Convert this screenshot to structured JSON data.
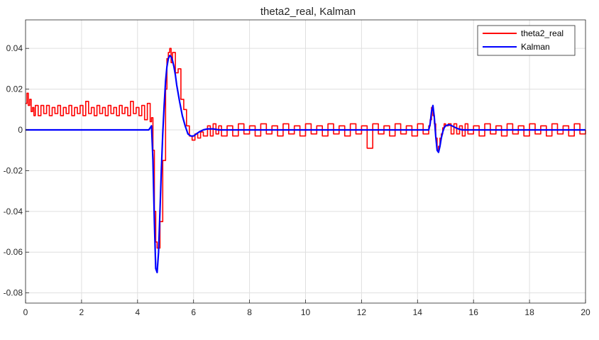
{
  "chart_data": {
    "type": "line",
    "title": "theta2_real, Kalman",
    "xlabel": "",
    "ylabel": "",
    "xlim": [
      0,
      20
    ],
    "ylim": [
      -0.085,
      0.054
    ],
    "xticks": [
      0,
      2,
      4,
      6,
      8,
      10,
      12,
      14,
      16,
      18,
      20
    ],
    "xtick_labels": [
      "0",
      "2",
      "4",
      "6",
      "8",
      "10",
      "12",
      "14",
      "16",
      "18",
      "20"
    ],
    "yticks": [
      -0.08,
      -0.06,
      -0.04,
      -0.02,
      0,
      0.02,
      0.04
    ],
    "ytick_labels": [
      "-0.08",
      "-0.06",
      "-0.04",
      "-0.02",
      "0",
      "0.02",
      "0.04"
    ],
    "grid": true,
    "legend_position": "top-right",
    "colors": {
      "theta2_real": "#ff0000",
      "Kalman": "#0000ff"
    },
    "series": [
      {
        "name": "theta2_real",
        "color": "#ff0000",
        "x": [
          0,
          0.05,
          0.1,
          0.15,
          0.2,
          0.25,
          0.3,
          0.35,
          0.45,
          0.55,
          0.65,
          0.75,
          0.85,
          0.95,
          1.05,
          1.15,
          1.25,
          1.35,
          1.45,
          1.55,
          1.65,
          1.75,
          1.85,
          1.95,
          2.05,
          2.15,
          2.25,
          2.35,
          2.45,
          2.55,
          2.65,
          2.75,
          2.85,
          2.95,
          3.05,
          3.15,
          3.25,
          3.35,
          3.45,
          3.55,
          3.65,
          3.75,
          3.85,
          3.95,
          4.05,
          4.15,
          4.25,
          4.35,
          4.45,
          4.5,
          4.55,
          4.6,
          4.65,
          4.7,
          4.8,
          4.9,
          5.0,
          5.05,
          5.1,
          5.15,
          5.2,
          5.25,
          5.35,
          5.45,
          5.55,
          5.65,
          5.75,
          5.85,
          5.95,
          6.05,
          6.15,
          6.25,
          6.35,
          6.5,
          6.6,
          6.7,
          6.8,
          6.9,
          7.0,
          7.2,
          7.4,
          7.6,
          7.8,
          8.0,
          8.2,
          8.4,
          8.6,
          8.8,
          9.0,
          9.2,
          9.4,
          9.6,
          9.8,
          10.0,
          10.2,
          10.4,
          10.6,
          10.8,
          11.0,
          11.2,
          11.4,
          11.6,
          11.8,
          12.0,
          12.2,
          12.4,
          12.6,
          12.8,
          13.0,
          13.2,
          13.4,
          13.6,
          13.8,
          14.0,
          14.2,
          14.4,
          14.45,
          14.5,
          14.55,
          14.6,
          14.65,
          14.7,
          14.75,
          14.8,
          14.85,
          14.9,
          14.95,
          15.0,
          15.1,
          15.2,
          15.3,
          15.4,
          15.5,
          15.6,
          15.7,
          15.8,
          16.0,
          16.2,
          16.4,
          16.6,
          16.8,
          17.0,
          17.2,
          17.4,
          17.6,
          17.8,
          18.0,
          18.2,
          18.4,
          18.6,
          18.8,
          19.0,
          19.2,
          19.4,
          19.6,
          19.8,
          20.0
        ],
        "y": [
          0.013,
          0.018,
          0.012,
          0.015,
          0.009,
          0.011,
          0.007,
          0.012,
          0.007,
          0.012,
          0.008,
          0.012,
          0.007,
          0.011,
          0.008,
          0.012,
          0.007,
          0.011,
          0.008,
          0.012,
          0.007,
          0.011,
          0.008,
          0.012,
          0.007,
          0.014,
          0.008,
          0.011,
          0.007,
          0.012,
          0.008,
          0.011,
          0.007,
          0.012,
          0.008,
          0.011,
          0.007,
          0.012,
          0.008,
          0.011,
          0.007,
          0.014,
          0.008,
          0.011,
          0.007,
          0.012,
          0.005,
          0.013,
          0.004,
          0.006,
          -0.01,
          -0.04,
          -0.055,
          -0.058,
          -0.045,
          -0.015,
          0.02,
          0.035,
          0.038,
          0.04,
          0.033,
          0.038,
          0.028,
          0.03,
          0.015,
          0.01,
          0.002,
          -0.003,
          -0.005,
          -0.002,
          -0.004,
          -0.001,
          -0.003,
          0.002,
          -0.003,
          0.003,
          -0.002,
          0.002,
          -0.003,
          0.002,
          -0.003,
          0.003,
          -0.002,
          0.002,
          -0.003,
          0.003,
          -0.002,
          0.002,
          -0.003,
          0.003,
          -0.002,
          0.002,
          -0.003,
          0.003,
          -0.002,
          0.002,
          -0.003,
          0.003,
          -0.002,
          0.002,
          -0.003,
          0.003,
          -0.002,
          0.002,
          -0.009,
          0.003,
          -0.002,
          0.002,
          -0.003,
          0.003,
          -0.002,
          0.002,
          -0.003,
          0.003,
          -0.002,
          0.002,
          0.005,
          0.011,
          0.007,
          0.003,
          -0.004,
          -0.01,
          -0.008,
          -0.004,
          -0.002,
          0.001,
          0.003,
          0.002,
          0.003,
          -0.002,
          0.003,
          -0.002,
          0.002,
          -0.003,
          0.003,
          -0.002,
          0.002,
          -0.003,
          0.003,
          -0.002,
          0.002,
          -0.003,
          0.003,
          -0.002,
          0.002,
          -0.003,
          0.003,
          -0.002,
          0.002,
          -0.003,
          0.003,
          -0.002,
          0.002,
          -0.003,
          0.003,
          -0.002,
          0.0
        ]
      },
      {
        "name": "Kalman",
        "color": "#0000ff",
        "x": [
          0,
          4.4,
          4.45,
          4.5,
          4.55,
          4.6,
          4.65,
          4.7,
          4.75,
          4.8,
          4.85,
          4.9,
          4.95,
          5.0,
          5.05,
          5.1,
          5.15,
          5.2,
          5.25,
          5.3,
          5.35,
          5.4,
          5.5,
          5.6,
          5.7,
          5.8,
          5.9,
          6.0,
          6.1,
          6.2,
          6.35,
          6.5,
          6.7,
          6.9,
          7.2,
          8.0,
          10.0,
          12.0,
          14.0,
          14.4,
          14.45,
          14.5,
          14.55,
          14.6,
          14.65,
          14.7,
          14.75,
          14.8,
          14.85,
          14.9,
          14.95,
          15.0,
          15.1,
          15.2,
          15.3,
          15.4,
          15.5,
          15.6,
          15.8,
          16.0,
          17.0,
          18.0,
          19.0,
          20.0
        ],
        "y": [
          0.0,
          0.0,
          0.001,
          0.002,
          -0.015,
          -0.045,
          -0.068,
          -0.07,
          -0.06,
          -0.04,
          -0.02,
          -0.002,
          0.012,
          0.024,
          0.031,
          0.035,
          0.0365,
          0.036,
          0.034,
          0.031,
          0.027,
          0.022,
          0.014,
          0.007,
          0.002,
          -0.002,
          -0.003,
          -0.003,
          -0.002,
          -0.001,
          0.0,
          0.0005,
          0.0005,
          0.0,
          0.0,
          0.0,
          0.0,
          0.0,
          0.0,
          0.0,
          0.003,
          0.009,
          0.012,
          0.006,
          -0.003,
          -0.01,
          -0.011,
          -0.008,
          -0.004,
          -0.001,
          0.001,
          0.002,
          0.0025,
          0.0022,
          0.0015,
          0.0008,
          0.0003,
          0.0,
          0.0,
          0.0,
          0.0,
          0.0,
          0.0,
          0.0
        ]
      }
    ]
  }
}
